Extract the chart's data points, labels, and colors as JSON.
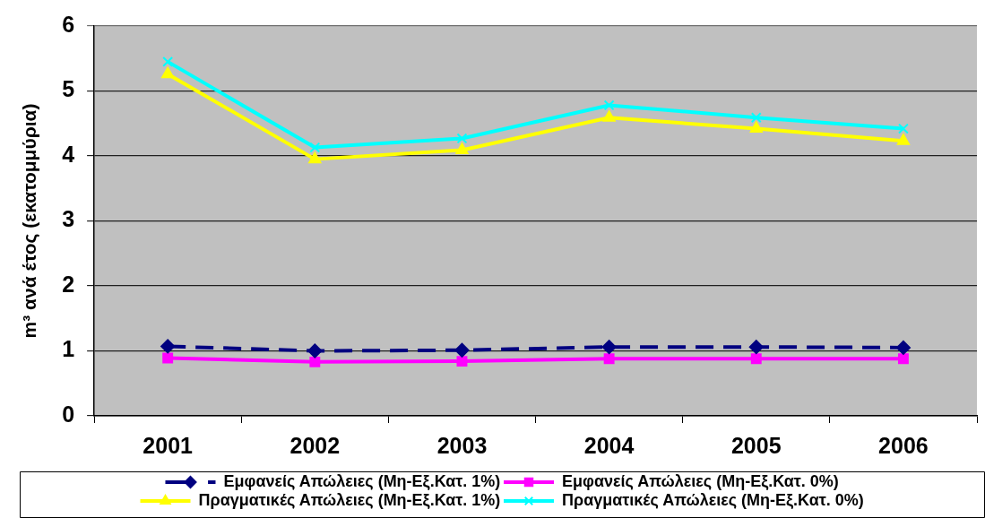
{
  "chart_data": {
    "type": "line",
    "ylabel": "m³ ανά έτος (εκατομμύρια)",
    "categories": [
      "2001",
      "2002",
      "2003",
      "2004",
      "2005",
      "2006"
    ],
    "series": [
      {
        "name": "Εμφανείς Απώλειες (Μη-Εξ.Κατ. 1%)",
        "color": "#000080",
        "values": [
          1.07,
          1.0,
          1.01,
          1.06,
          1.06,
          1.05
        ],
        "marker": "diamond",
        "line_style": "dashed"
      },
      {
        "name": "Εμφανείς Απώλειες (Μη-Εξ.Κατ. 0%)",
        "color": "#ff00ff",
        "values": [
          0.89,
          0.83,
          0.84,
          0.88,
          0.88,
          0.88
        ],
        "marker": "square",
        "line_style": "solid"
      },
      {
        "name": "Πραγματικές Απώλειες (Μη-Εξ.Κατ. 1%)",
        "color": "#ffff00",
        "values": [
          5.26,
          3.95,
          4.09,
          4.59,
          4.42,
          4.23
        ],
        "marker": "triangle",
        "line_style": "solid"
      },
      {
        "name": "Πραγματικές Απώλειες (Μη-Εξ.Κατ. 0%)",
        "color": "#00ffff",
        "values": [
          5.45,
          4.13,
          4.27,
          4.78,
          4.59,
          4.42
        ],
        "marker": "cross",
        "line_style": "solid"
      }
    ],
    "ylim": [
      0,
      6
    ],
    "yticks": [
      0,
      1,
      2,
      3,
      4,
      5,
      6
    ],
    "grid": "y",
    "legend": "bottom"
  }
}
